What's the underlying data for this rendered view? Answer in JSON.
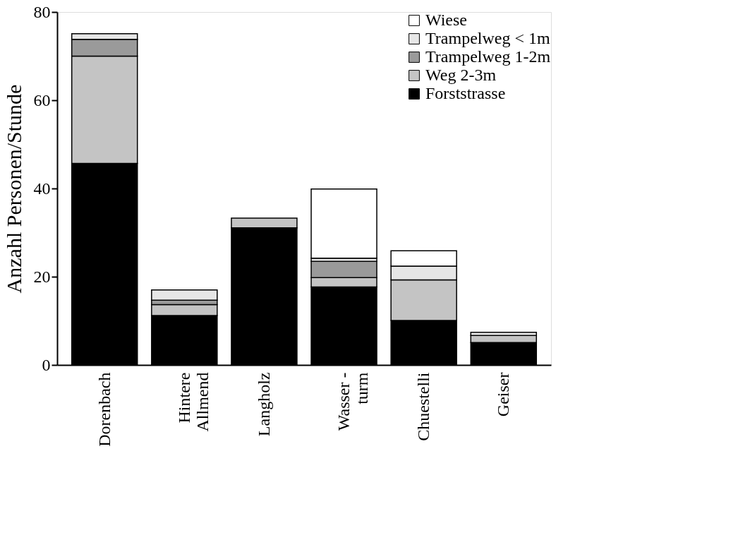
{
  "chart_data": {
    "type": "bar",
    "stacked": true,
    "ylabel": "Anzahl Personen/Stunde",
    "categories": [
      "Dorenbach",
      "Hintere\nAllmend",
      "Langholz",
      "Wasser -\nturm",
      "Chuestelli",
      "Geiser"
    ],
    "series": [
      {
        "name": "Forststrasse",
        "color": "#000000",
        "values": [
          45.7,
          11.2,
          31.1,
          17.7,
          10.1,
          5.1
        ]
      },
      {
        "name": "Weg 2-3m",
        "color": "#c4c4c4",
        "values": [
          24.3,
          2.5,
          2.2,
          2.1,
          9.2,
          1.6
        ]
      },
      {
        "name": "Trampelweg 1-2m",
        "color": "#9a9a9a",
        "values": [
          3.8,
          1.0,
          null,
          3.7,
          null,
          null
        ]
      },
      {
        "name": "Trampelweg < 1m",
        "color": "#e6e6e6",
        "values": [
          1.3,
          2.3,
          null,
          0.7,
          3.1,
          0.7
        ]
      },
      {
        "name": "Wiese",
        "color": "#ffffff",
        "values": [
          null,
          null,
          null,
          15.7,
          3.5,
          null
        ]
      }
    ],
    "ylim": [
      0,
      80
    ],
    "yticks": [
      0,
      20,
      40,
      60,
      80
    ],
    "grid": false,
    "legend": "top right"
  }
}
